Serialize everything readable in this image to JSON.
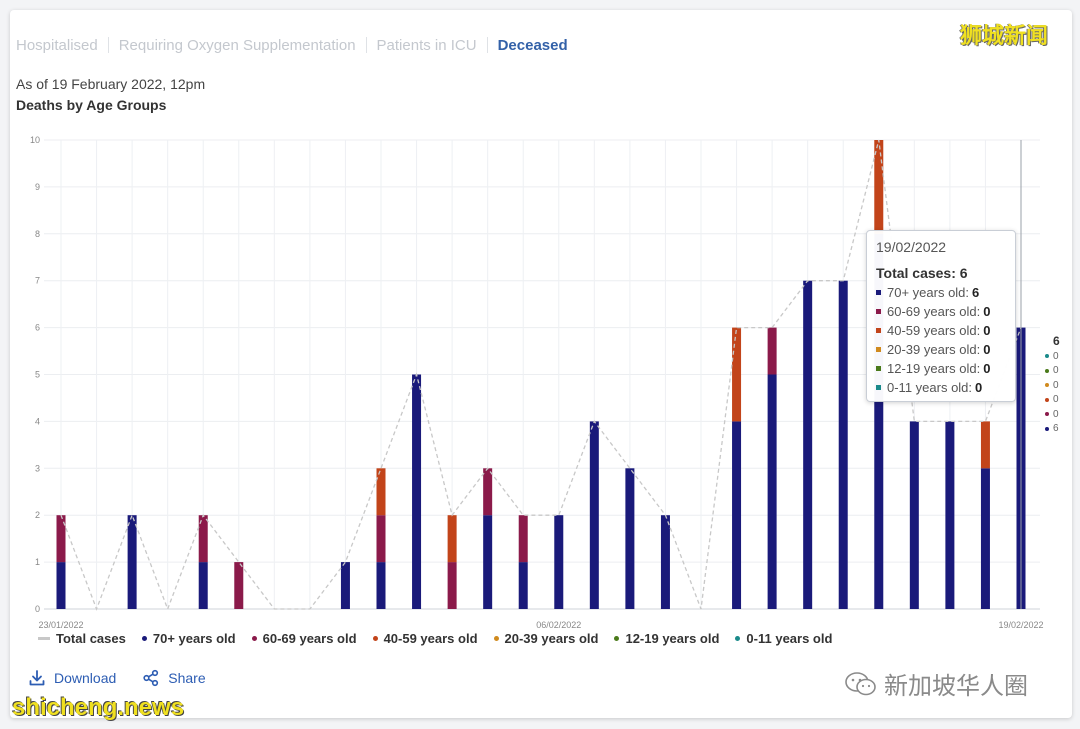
{
  "tabs": [
    "Hospitalised",
    "Requiring Oxygen Supplementation",
    "Patients in ICU",
    "Deceased"
  ],
  "active_tab": 3,
  "as_of": "As of 19 February 2022, 12pm",
  "chart_title": "Deaths by Age Groups",
  "legend": [
    {
      "label": "Total cases",
      "color": "#c8c8c8"
    },
    {
      "label": "70+ years old",
      "color": "#1a1a7a"
    },
    {
      "label": "60-69 years old",
      "color": "#8b1a4a"
    },
    {
      "label": "40-59 years old",
      "color": "#c2441a"
    },
    {
      "label": "20-39 years old",
      "color": "#d08a1e"
    },
    {
      "label": "12-19 years old",
      "color": "#4a7a1a"
    },
    {
      "label": "0-11 years old",
      "color": "#1a8a8a"
    }
  ],
  "actions": {
    "download": "Download",
    "share": "Share"
  },
  "tooltip": {
    "date": "19/02/2022",
    "total_label": "Total cases:",
    "total": "6",
    "rows": [
      {
        "label": "70+ years old:",
        "value": "6",
        "color": "#1a1a7a"
      },
      {
        "label": "60-69 years old:",
        "value": "0",
        "color": "#8b1a4a"
      },
      {
        "label": "40-59 years old:",
        "value": "0",
        "color": "#c2441a"
      },
      {
        "label": "20-39 years old:",
        "value": "0",
        "color": "#d08a1e"
      },
      {
        "label": "12-19 years old:",
        "value": "0",
        "color": "#4a7a1a"
      },
      {
        "label": "0-11 years old:",
        "value": "0",
        "color": "#1a8a8a"
      }
    ]
  },
  "side_values": {
    "total": "6",
    "rows": [
      {
        "value": "0",
        "color": "#1a8a8a"
      },
      {
        "value": "0",
        "color": "#4a7a1a"
      },
      {
        "value": "0",
        "color": "#d08a1e"
      },
      {
        "value": "0",
        "color": "#c2441a"
      },
      {
        "value": "0",
        "color": "#8b1a4a"
      },
      {
        "value": "6",
        "color": "#1a1a7a"
      }
    ]
  },
  "watermarks": {
    "top_right": "狮城新闻",
    "bottom_left": "shicheng.news",
    "bottom_right": "新加坡华人圈"
  },
  "chart_data": {
    "type": "bar",
    "stacked": true,
    "x_tick_labels": [
      "23/01/2022",
      "06/02/2022",
      "19/02/2022"
    ],
    "dates": [
      "23/01/2022",
      "24/01/2022",
      "25/01/2022",
      "26/01/2022",
      "27/01/2022",
      "28/01/2022",
      "29/01/2022",
      "30/01/2022",
      "31/01/2022",
      "01/02/2022",
      "02/02/2022",
      "03/02/2022",
      "04/02/2022",
      "05/02/2022",
      "06/02/2022",
      "07/02/2022",
      "08/02/2022",
      "09/02/2022",
      "10/02/2022",
      "11/02/2022",
      "12/02/2022",
      "13/02/2022",
      "14/02/2022",
      "15/02/2022",
      "16/02/2022",
      "17/02/2022",
      "18/02/2022",
      "19/02/2022"
    ],
    "ylim": [
      0,
      10
    ],
    "y_ticks": [
      0,
      1,
      2,
      3,
      4,
      5,
      6,
      7,
      8,
      9,
      10
    ],
    "grid": true,
    "series": [
      {
        "name": "70+ years old",
        "color": "#1a1a7a",
        "values": [
          1,
          0,
          2,
          0,
          1,
          0,
          0,
          0,
          1,
          1,
          5,
          0,
          2,
          1,
          2,
          4,
          3,
          2,
          0,
          4,
          5,
          7,
          7,
          8,
          4,
          4,
          3,
          6
        ]
      },
      {
        "name": "60-69 years old",
        "color": "#8b1a4a",
        "values": [
          1,
          0,
          0,
          0,
          1,
          1,
          0,
          0,
          0,
          1,
          0,
          1,
          1,
          1,
          0,
          0,
          0,
          0,
          0,
          0,
          1,
          0,
          0,
          0,
          0,
          0,
          0,
          0
        ]
      },
      {
        "name": "40-59 years old",
        "color": "#c2441a",
        "values": [
          0,
          0,
          0,
          0,
          0,
          0,
          0,
          0,
          0,
          1,
          0,
          1,
          0,
          0,
          0,
          0,
          0,
          0,
          0,
          2,
          0,
          0,
          0,
          2,
          0,
          0,
          1,
          0
        ]
      },
      {
        "name": "20-39 years old",
        "color": "#d08a1e",
        "values": [
          0,
          0,
          0,
          0,
          0,
          0,
          0,
          0,
          0,
          0,
          0,
          0,
          0,
          0,
          0,
          0,
          0,
          0,
          0,
          0,
          0,
          0,
          0,
          0,
          0,
          0,
          0,
          0
        ]
      },
      {
        "name": "12-19 years old",
        "color": "#4a7a1a",
        "values": [
          0,
          0,
          0,
          0,
          0,
          0,
          0,
          0,
          0,
          0,
          0,
          0,
          0,
          0,
          0,
          0,
          0,
          0,
          0,
          0,
          0,
          0,
          0,
          0,
          0,
          0,
          0,
          0
        ]
      },
      {
        "name": "0-11 years old",
        "color": "#1a8a8a",
        "values": [
          0,
          0,
          0,
          0,
          0,
          0,
          0,
          0,
          0,
          0,
          0,
          0,
          0,
          0,
          0,
          0,
          0,
          0,
          0,
          0,
          0,
          0,
          0,
          0,
          0,
          0,
          0,
          0
        ]
      }
    ],
    "total": {
      "name": "Total cases",
      "color": "#c8c8c8",
      "values": [
        2,
        0,
        2,
        0,
        2,
        1,
        0,
        0,
        1,
        3,
        5,
        2,
        3,
        2,
        2,
        4,
        3,
        2,
        0,
        6,
        6,
        7,
        7,
        10,
        4,
        4,
        4,
        6
      ]
    }
  }
}
